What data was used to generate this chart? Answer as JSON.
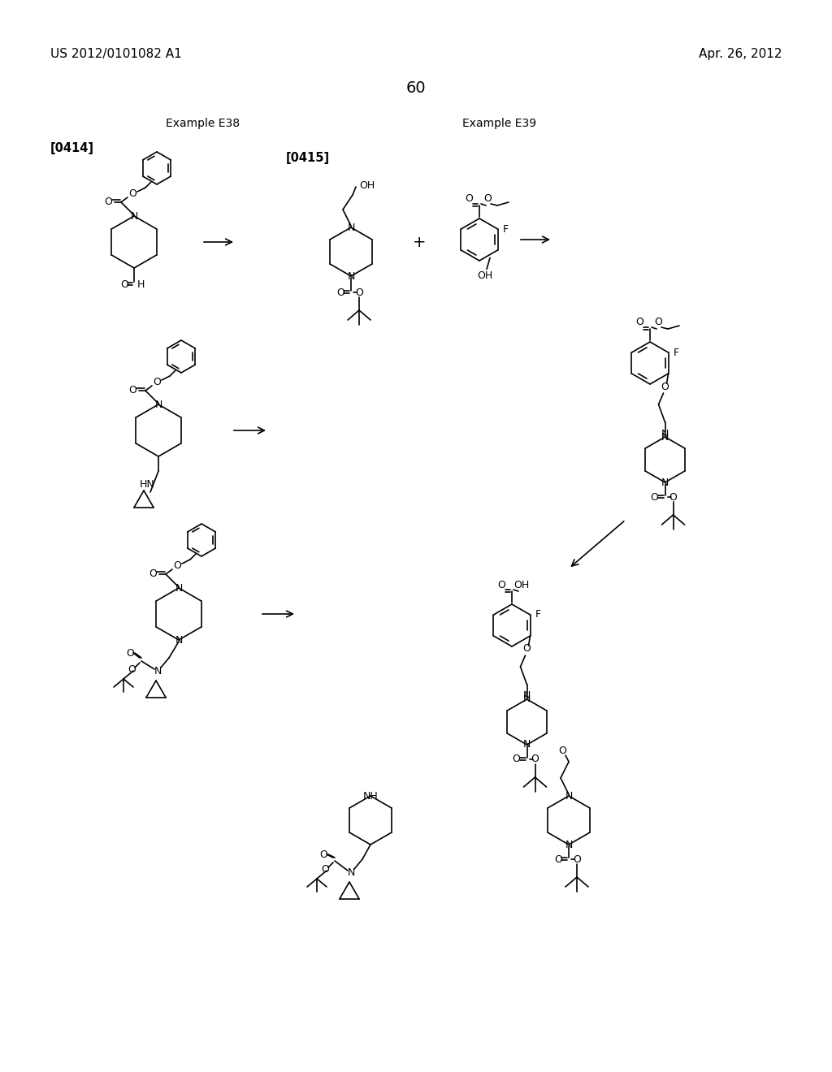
{
  "bg": "#ffffff",
  "header_left": "US 2012/0101082 A1",
  "header_right": "Apr. 26, 2012",
  "page_num": "60",
  "ex38": "Example E38",
  "ex39": "Example E39",
  "ref414": "[0414]",
  "ref415": "[0415]"
}
